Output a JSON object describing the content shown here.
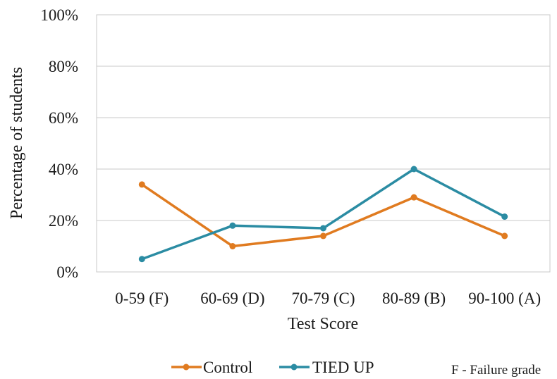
{
  "chart_data": {
    "type": "line",
    "categories": [
      "0-59 (F)",
      "60-69 (D)",
      "70-79 (C)",
      "80-89 (B)",
      "90-100 (A)"
    ],
    "series": [
      {
        "name": "Control",
        "color": "#E07B20",
        "values": [
          34,
          10,
          14,
          29,
          14
        ]
      },
      {
        "name": "TIED UP",
        "color": "#2B8CA3",
        "values": [
          5,
          18,
          17,
          40,
          21.5
        ]
      }
    ],
    "xlabel": "Test Score",
    "ylabel": "Percentage of students",
    "ylim": [
      0,
      100
    ],
    "yticks": [
      0,
      20,
      40,
      60,
      80,
      100
    ],
    "ytick_labels": [
      "0%",
      "20%",
      "40%",
      "60%",
      "80%",
      "100%"
    ],
    "grid": true,
    "legend": "bottom",
    "annotation": "F - Failure grade"
  },
  "colors": {
    "grid": "#c8c8c8",
    "frame": "#c8c8c8"
  }
}
